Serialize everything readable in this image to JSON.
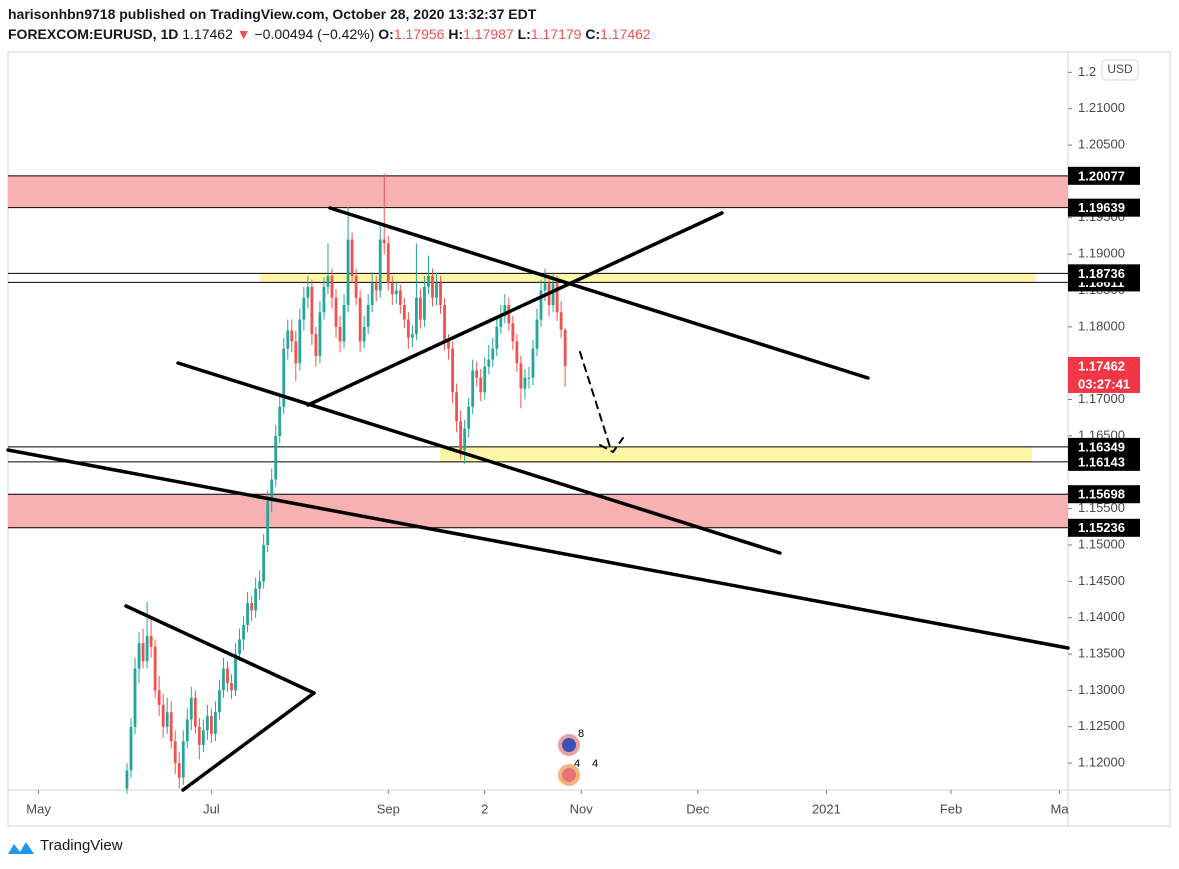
{
  "header": {
    "published": "harisonhbn9718 published on TradingView.com, October 28, 2020 13:32:37 EDT",
    "symbol": "FOREXCOM:EURUSD, 1D",
    "last": "1.17462",
    "arrow": "▼",
    "change": "−0.00494 (−0.42%)",
    "o_label": "O:",
    "o": "1.17956",
    "h_label": "H:",
    "h": "1.17987",
    "l_label": "L:",
    "l": "1.17179",
    "c_label": "C:",
    "c": "1.17462"
  },
  "chart_data": {
    "type": "candlestick",
    "up_color": "#26a69a",
    "down_color": "#ef5350",
    "currency": "USD",
    "candles": [
      [
        1.1165,
        1.12,
        1.1158,
        1.119
      ],
      [
        1.119,
        1.1262,
        1.118,
        1.125
      ],
      [
        1.125,
        1.1345,
        1.124,
        1.133
      ],
      [
        1.133,
        1.138,
        1.131,
        1.1365
      ],
      [
        1.1365,
        1.1385,
        1.133,
        1.134
      ],
      [
        1.134,
        1.1422,
        1.133,
        1.1375
      ],
      [
        1.1375,
        1.14,
        1.1345,
        1.136
      ],
      [
        1.136,
        1.137,
        1.129,
        1.13
      ],
      [
        1.13,
        1.132,
        1.1265,
        1.128
      ],
      [
        1.128,
        1.1295,
        1.1235,
        1.125
      ],
      [
        1.125,
        1.129,
        1.124,
        1.127
      ],
      [
        1.127,
        1.1285,
        1.122,
        1.123
      ],
      [
        1.123,
        1.1245,
        1.1185,
        1.12
      ],
      [
        1.12,
        1.1215,
        1.1165,
        1.118
      ],
      [
        1.118,
        1.1245,
        1.117,
        1.123
      ],
      [
        1.123,
        1.1275,
        1.122,
        1.126
      ],
      [
        1.126,
        1.1305,
        1.1245,
        1.129
      ],
      [
        1.129,
        1.13,
        1.124,
        1.125
      ],
      [
        1.125,
        1.1262,
        1.1205,
        1.1225
      ],
      [
        1.1225,
        1.126,
        1.1215,
        1.1245
      ],
      [
        1.1245,
        1.128,
        1.1232,
        1.1265
      ],
      [
        1.1265,
        1.1275,
        1.1228,
        1.124
      ],
      [
        1.124,
        1.1285,
        1.123,
        1.127
      ],
      [
        1.127,
        1.1315,
        1.126,
        1.13
      ],
      [
        1.13,
        1.1345,
        1.129,
        1.133
      ],
      [
        1.133,
        1.134,
        1.1298,
        1.131
      ],
      [
        1.131,
        1.1322,
        1.1288,
        1.13
      ],
      [
        1.13,
        1.1365,
        1.1292,
        1.135
      ],
      [
        1.135,
        1.1385,
        1.134,
        1.137
      ],
      [
        1.137,
        1.1402,
        1.1355,
        1.139
      ],
      [
        1.139,
        1.1435,
        1.138,
        1.142
      ],
      [
        1.142,
        1.143,
        1.1395,
        1.141
      ],
      [
        1.141,
        1.1455,
        1.14,
        1.144
      ],
      [
        1.144,
        1.1465,
        1.1425,
        1.145
      ],
      [
        1.145,
        1.1515,
        1.144,
        1.15
      ],
      [
        1.15,
        1.1575,
        1.149,
        1.156
      ],
      [
        1.156,
        1.1605,
        1.1545,
        1.159
      ],
      [
        1.159,
        1.1665,
        1.158,
        1.165
      ],
      [
        1.165,
        1.1705,
        1.164,
        1.169
      ],
      [
        1.169,
        1.1785,
        1.168,
        1.177
      ],
      [
        1.177,
        1.181,
        1.1755,
        1.1795
      ],
      [
        1.1795,
        1.181,
        1.1765,
        1.178
      ],
      [
        1.178,
        1.1795,
        1.1725,
        1.175
      ],
      [
        1.175,
        1.1825,
        1.174,
        1.181
      ],
      [
        1.181,
        1.1855,
        1.1795,
        1.184
      ],
      [
        1.184,
        1.187,
        1.1825,
        1.1855
      ],
      [
        1.1855,
        1.1865,
        1.1775,
        1.179
      ],
      [
        1.179,
        1.18,
        1.1745,
        1.176
      ],
      [
        1.176,
        1.1835,
        1.175,
        1.182
      ],
      [
        1.182,
        1.1868,
        1.181,
        1.1855
      ],
      [
        1.1855,
        1.1915,
        1.1845,
        1.187
      ],
      [
        1.187,
        1.188,
        1.1825,
        1.184
      ],
      [
        1.184,
        1.1852,
        1.1785,
        1.18
      ],
      [
        1.18,
        1.1815,
        1.1765,
        1.178
      ],
      [
        1.178,
        1.1845,
        1.177,
        1.183
      ],
      [
        1.183,
        1.1965,
        1.182,
        1.192
      ],
      [
        1.192,
        1.193,
        1.186,
        1.187
      ],
      [
        1.187,
        1.188,
        1.183,
        1.184
      ],
      [
        1.184,
        1.185,
        1.1765,
        1.178
      ],
      [
        1.178,
        1.1815,
        1.177,
        1.18
      ],
      [
        1.18,
        1.1845,
        1.179,
        1.183
      ],
      [
        1.183,
        1.1875,
        1.182,
        1.186
      ],
      [
        1.186,
        1.187,
        1.1835,
        1.185
      ],
      [
        1.185,
        1.1945,
        1.184,
        1.192
      ],
      [
        1.192,
        1.2011,
        1.19,
        1.1915
      ],
      [
        1.1915,
        1.1925,
        1.185,
        1.186
      ],
      [
        1.186,
        1.187,
        1.183,
        1.1845
      ],
      [
        1.1845,
        1.1862,
        1.1832,
        1.185
      ],
      [
        1.185,
        1.1858,
        1.1818,
        1.183
      ],
      [
        1.183,
        1.184,
        1.1798,
        1.181
      ],
      [
        1.181,
        1.182,
        1.177,
        1.1785
      ],
      [
        1.1785,
        1.1802,
        1.1772,
        1.179
      ],
      [
        1.179,
        1.1915,
        1.1782,
        1.184
      ],
      [
        1.184,
        1.1852,
        1.1798,
        1.181
      ],
      [
        1.181,
        1.187,
        1.18,
        1.1855
      ],
      [
        1.1855,
        1.1898,
        1.1845,
        1.187
      ],
      [
        1.187,
        1.188,
        1.1828,
        1.184
      ],
      [
        1.184,
        1.1875,
        1.183,
        1.186
      ],
      [
        1.186,
        1.187,
        1.1818,
        1.183
      ],
      [
        1.183,
        1.184,
        1.1768,
        1.178
      ],
      [
        1.178,
        1.179,
        1.1755,
        1.177
      ],
      [
        1.177,
        1.178,
        1.1695,
        1.171
      ],
      [
        1.171,
        1.1722,
        1.1655,
        1.167
      ],
      [
        1.167,
        1.1685,
        1.1618,
        1.163
      ],
      [
        1.163,
        1.1672,
        1.1612,
        1.166
      ],
      [
        1.166,
        1.1702,
        1.1648,
        1.169
      ],
      [
        1.169,
        1.1755,
        1.168,
        1.174
      ],
      [
        1.174,
        1.1752,
        1.1718,
        1.173
      ],
      [
        1.173,
        1.1742,
        1.1698,
        1.171
      ],
      [
        1.171,
        1.1758,
        1.17,
        1.1745
      ],
      [
        1.1745,
        1.1775,
        1.1735,
        1.1755
      ],
      [
        1.1755,
        1.1785,
        1.1745,
        1.177
      ],
      [
        1.177,
        1.1815,
        1.176,
        1.18
      ],
      [
        1.18,
        1.183,
        1.179,
        1.1815
      ],
      [
        1.1815,
        1.1845,
        1.1805,
        1.183
      ],
      [
        1.183,
        1.184,
        1.1795,
        1.1805
      ],
      [
        1.1805,
        1.1815,
        1.1768,
        1.178
      ],
      [
        1.178,
        1.179,
        1.1738,
        1.175
      ],
      [
        1.175,
        1.176,
        1.1688,
        1.1715
      ],
      [
        1.1715,
        1.1742,
        1.17,
        1.173
      ],
      [
        1.173,
        1.1745,
        1.1715,
        1.173
      ],
      [
        1.173,
        1.1782,
        1.172,
        1.177
      ],
      [
        1.177,
        1.1825,
        1.176,
        1.181
      ],
      [
        1.181,
        1.1865,
        1.18,
        1.185
      ],
      [
        1.185,
        1.188,
        1.1835,
        1.186
      ],
      [
        1.186,
        1.1872,
        1.1815,
        1.183
      ],
      [
        1.183,
        1.1875,
        1.182,
        1.186
      ],
      [
        1.186,
        1.187,
        1.1808,
        1.182
      ],
      [
        1.182,
        1.1835,
        1.1785,
        1.1796
      ],
      [
        1.17956,
        1.17987,
        1.17179,
        1.17462
      ]
    ],
    "xlim": [
      -29.6,
      234.1
    ],
    "xticks": [
      {
        "value": -22,
        "label": "May"
      },
      {
        "value": 21,
        "label": "Jul"
      },
      {
        "value": 65,
        "label": "Sep"
      },
      {
        "value": 89,
        "label": "2"
      },
      {
        "value": 113,
        "label": "Nov"
      },
      {
        "value": 142,
        "label": "Dec"
      },
      {
        "value": 174,
        "label": "2021"
      },
      {
        "value": 205,
        "label": "Feb"
      },
      {
        "value": 232,
        "label": "Ma"
      }
    ],
    "ylim": [
      1.1163,
      1.2178
    ],
    "yticks": [
      {
        "value": 1.12,
        "label": "1.12000"
      },
      {
        "value": 1.125,
        "label": "1.12500"
      },
      {
        "value": 1.13,
        "label": "1.13000"
      },
      {
        "value": 1.135,
        "label": "1.13500"
      },
      {
        "value": 1.14,
        "label": "1.14000"
      },
      {
        "value": 1.145,
        "label": "1.14500"
      },
      {
        "value": 1.15,
        "label": "1.15000"
      },
      {
        "value": 1.155,
        "label": "1.15500"
      },
      {
        "value": 1.165,
        "label": "1.16500"
      },
      {
        "value": 1.17,
        "label": "1.17000"
      },
      {
        "value": 1.18,
        "label": "1.18000"
      },
      {
        "value": 1.185,
        "label": "1.18500"
      },
      {
        "value": 1.19,
        "label": "1.19000"
      },
      {
        "value": 1.195,
        "label": "1.19500"
      },
      {
        "value": 1.205,
        "label": "1.20500"
      },
      {
        "value": 1.21,
        "label": "1.21000"
      },
      {
        "value": 1.215,
        "label": "1.2"
      }
    ],
    "price_tags": [
      {
        "value": 1.20077,
        "label": "1.20077"
      },
      {
        "value": 1.19639,
        "label": "1.19639"
      },
      {
        "value": 1.18611,
        "label": "1.18611"
      },
      {
        "value": 1.18736,
        "label": "1.18736"
      },
      {
        "value": 1.16349,
        "label": "1.16349"
      },
      {
        "value": 1.16143,
        "label": "1.16143"
      },
      {
        "value": 1.15698,
        "label": "1.15698"
      },
      {
        "value": 1.15236,
        "label": "1.15236"
      }
    ],
    "last_price": {
      "value": 1.17462,
      "label": "1.17462",
      "color": "#f23645"
    },
    "countdown": "03:27:41",
    "zones": [
      {
        "low": 1.19639,
        "high": 1.20077,
        "color": "#f7a9a8"
      },
      {
        "low": 1.18611,
        "high": 1.18736,
        "color": "#fff59d"
      },
      {
        "low": 1.16143,
        "high": 1.16349,
        "color": "#fff59d"
      },
      {
        "low": 1.15236,
        "high": 1.15698,
        "color": "#f7a9a8"
      }
    ]
  },
  "events": [
    "8",
    "4",
    "4"
  ],
  "footer": "TradingView"
}
